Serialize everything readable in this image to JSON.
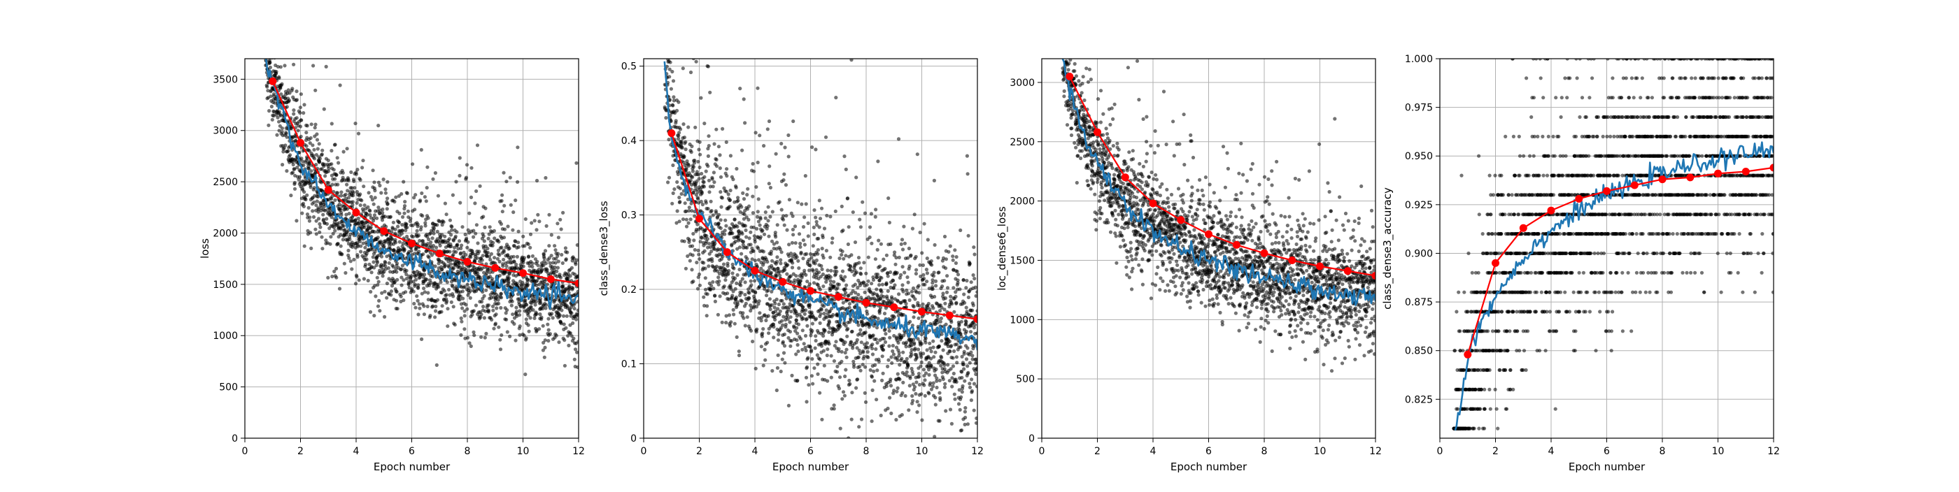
{
  "figure": {
    "background": "#ffffff"
  },
  "style": {
    "raw_color": "#000000",
    "smooth_color": "#1f77b4",
    "epoch_color": "#ff0000",
    "grid_color": "#b0b0b0"
  },
  "chart_data": [
    {
      "type": "line",
      "id": "loss",
      "xlabel": "Epoch number",
      "ylabel": "loss",
      "xlim": [
        0,
        12
      ],
      "ylim": [
        0,
        3700
      ],
      "xticks": [
        0,
        2,
        4,
        6,
        8,
        10,
        12
      ],
      "yticks": [
        0,
        500,
        1000,
        1500,
        2000,
        2500,
        3000,
        3500
      ],
      "grid": true,
      "series": [
        {
          "kind": "per-batch scatter",
          "color": "#000000",
          "spread": 260,
          "x": [
            0.75,
            1,
            1.5,
            2,
            3,
            4,
            5,
            6,
            7,
            8,
            9,
            10,
            11,
            12
          ],
          "y": [
            3700,
            3450,
            3050,
            2680,
            2300,
            2050,
            1900,
            1780,
            1680,
            1600,
            1540,
            1490,
            1440,
            1380
          ]
        },
        {
          "kind": "smoothed line",
          "color": "#1f77b4",
          "x": [
            0.75,
            1,
            1.5,
            2,
            3,
            4,
            5,
            6,
            7,
            8,
            9,
            10,
            11,
            12
          ],
          "y": [
            3700,
            3450,
            3050,
            2680,
            2280,
            2000,
            1850,
            1720,
            1620,
            1540,
            1470,
            1420,
            1380,
            1340
          ]
        },
        {
          "kind": "epoch mean",
          "color": "#ff0000",
          "x": [
            1,
            2,
            3,
            4,
            5,
            6,
            7,
            8,
            9,
            10,
            11,
            12
          ],
          "y": [
            3480,
            2880,
            2420,
            2200,
            2020,
            1900,
            1800,
            1720,
            1660,
            1610,
            1550,
            1510
          ]
        }
      ]
    },
    {
      "type": "line",
      "id": "class_dense3_loss",
      "xlabel": "Epoch number",
      "ylabel": "class_dense3_loss",
      "xlim": [
        0,
        12
      ],
      "ylim": [
        0,
        0.51
      ],
      "xticks": [
        0,
        2,
        4,
        6,
        8,
        10,
        12
      ],
      "yticks": [
        0.0,
        0.1,
        0.2,
        0.3,
        0.4,
        0.5
      ],
      "grid": true,
      "series": [
        {
          "kind": "per-batch scatter",
          "color": "#000000",
          "spread": 0.055,
          "x": [
            0.75,
            1,
            1.5,
            2,
            3,
            4,
            5,
            6,
            7,
            8,
            9,
            10,
            11,
            12
          ],
          "y": [
            0.51,
            0.41,
            0.34,
            0.3,
            0.255,
            0.225,
            0.2,
            0.185,
            0.17,
            0.16,
            0.15,
            0.145,
            0.14,
            0.135
          ]
        },
        {
          "kind": "smoothed line",
          "color": "#1f77b4",
          "x": [
            0.75,
            1,
            1.5,
            2,
            3,
            4,
            5,
            6,
            7,
            8,
            9,
            10,
            11,
            12
          ],
          "y": [
            0.51,
            0.4,
            0.34,
            0.3,
            0.25,
            0.22,
            0.2,
            0.185,
            0.17,
            0.16,
            0.15,
            0.145,
            0.138,
            0.13
          ]
        },
        {
          "kind": "epoch mean",
          "color": "#ff0000",
          "x": [
            1,
            2,
            3,
            4,
            5,
            6,
            7,
            8,
            9,
            10,
            11,
            12
          ],
          "y": [
            0.41,
            0.295,
            0.25,
            0.225,
            0.21,
            0.198,
            0.19,
            0.182,
            0.176,
            0.17,
            0.165,
            0.16
          ]
        }
      ]
    },
    {
      "type": "line",
      "id": "loc_dense6_loss",
      "xlabel": "Epoch number",
      "ylabel": "loc_dense6_loss",
      "xlim": [
        0,
        12
      ],
      "ylim": [
        0,
        3200
      ],
      "xticks": [
        0,
        2,
        4,
        6,
        8,
        10,
        12
      ],
      "yticks": [
        0,
        500,
        1000,
        1500,
        2000,
        2500,
        3000
      ],
      "grid": true,
      "series": [
        {
          "kind": "per-batch scatter",
          "color": "#000000",
          "spread": 230,
          "x": [
            0.75,
            1,
            1.5,
            2,
            3,
            4,
            5,
            6,
            7,
            8,
            9,
            10,
            11,
            12
          ],
          "y": [
            3200,
            2950,
            2600,
            2320,
            2000,
            1780,
            1650,
            1550,
            1460,
            1390,
            1330,
            1280,
            1240,
            1200
          ]
        },
        {
          "kind": "smoothed line",
          "color": "#1f77b4",
          "x": [
            0.75,
            1,
            1.5,
            2,
            3,
            4,
            5,
            6,
            7,
            8,
            9,
            10,
            11,
            12
          ],
          "y": [
            3200,
            2950,
            2580,
            2300,
            1970,
            1740,
            1600,
            1500,
            1420,
            1350,
            1300,
            1250,
            1210,
            1170
          ]
        },
        {
          "kind": "epoch mean",
          "color": "#ff0000",
          "x": [
            1,
            2,
            3,
            4,
            5,
            6,
            7,
            8,
            9,
            10,
            11,
            12
          ],
          "y": [
            3050,
            2580,
            2200,
            1980,
            1840,
            1720,
            1630,
            1560,
            1500,
            1450,
            1410,
            1370
          ]
        }
      ]
    },
    {
      "type": "line",
      "id": "class_dense3_accuracy",
      "xlabel": "Epoch number",
      "ylabel": "class_dense3_accuracy",
      "xlim": [
        0,
        12
      ],
      "ylim": [
        0.805,
        1.0
      ],
      "xticks": [
        0,
        2,
        4,
        6,
        8,
        10,
        12
      ],
      "yticks": [
        0.825,
        0.85,
        0.875,
        0.9,
        0.925,
        0.95,
        0.975,
        1.0
      ],
      "yticks_format": 3,
      "grid": true,
      "series": [
        {
          "kind": "per-batch scatter (quantized)",
          "color": "#000000",
          "levels": [
            0.81,
            0.82,
            0.83,
            0.84,
            0.85,
            0.86,
            0.87,
            0.88,
            0.89,
            0.9,
            0.91,
            0.92,
            0.93,
            0.94,
            0.95,
            0.96,
            0.97,
            0.98,
            0.99,
            1.0
          ],
          "x": [
            0.5,
            1,
            1.5,
            2,
            3,
            4,
            5,
            6,
            7,
            8,
            9,
            10,
            11,
            12
          ],
          "y": [
            0.81,
            0.83,
            0.86,
            0.88,
            0.9,
            0.91,
            0.92,
            0.93,
            0.935,
            0.94,
            0.945,
            0.95,
            0.952,
            0.955
          ],
          "spread": 0.028
        },
        {
          "kind": "smoothed line",
          "color": "#1f77b4",
          "x": [
            0.55,
            0.7,
            1,
            1.3,
            1.6,
            2,
            2.5,
            3,
            3.5,
            4,
            4.5,
            5,
            5.5,
            6,
            6.5,
            7,
            7.5,
            8,
            8.5,
            9,
            9.5,
            10,
            10.5,
            11,
            11.5,
            12
          ],
          "y": [
            0.808,
            0.82,
            0.845,
            0.86,
            0.868,
            0.878,
            0.888,
            0.898,
            0.905,
            0.912,
            0.917,
            0.922,
            0.926,
            0.93,
            0.933,
            0.936,
            0.939,
            0.941,
            0.943,
            0.945,
            0.947,
            0.948,
            0.95,
            0.951,
            0.952,
            0.953
          ]
        },
        {
          "kind": "epoch mean",
          "color": "#ff0000",
          "x": [
            1,
            2,
            3,
            4,
            5,
            6,
            7,
            8,
            9,
            10,
            11,
            12
          ],
          "y": [
            0.848,
            0.895,
            0.913,
            0.922,
            0.928,
            0.932,
            0.935,
            0.938,
            0.939,
            0.941,
            0.942,
            0.944
          ]
        }
      ]
    }
  ]
}
